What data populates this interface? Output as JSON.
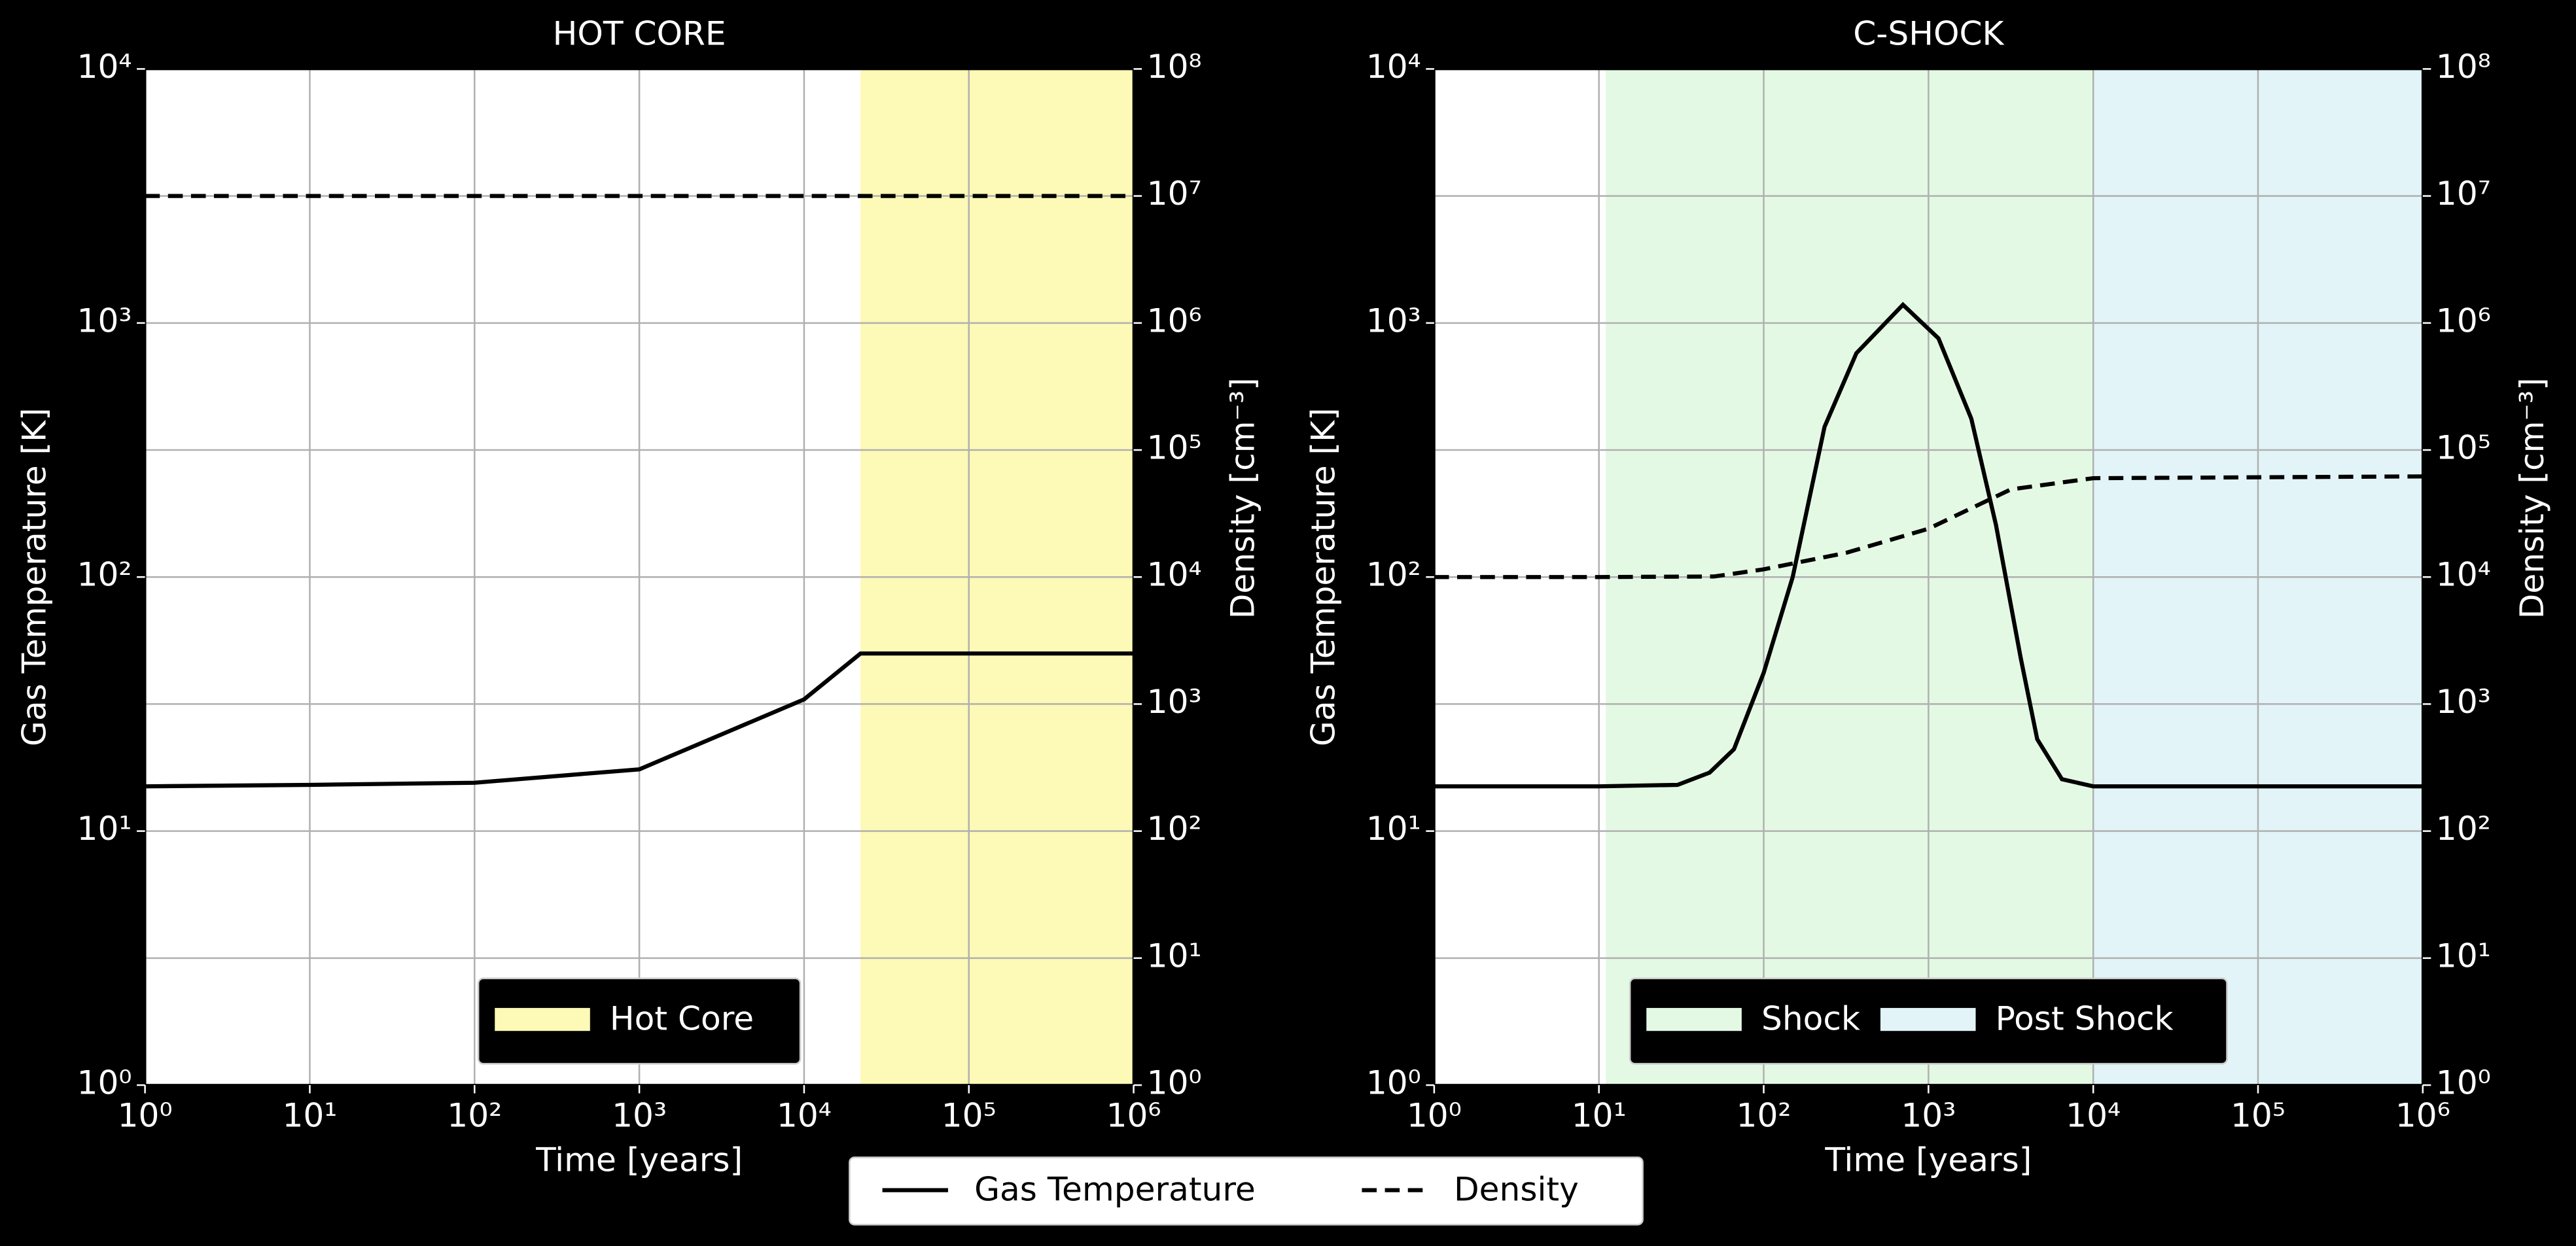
{
  "chart_data": [
    {
      "type": "line",
      "title": "HOT CORE",
      "xlabel": "Time [years]",
      "ylabel": "Gas Temperature [K]",
      "y2label": "Density [cm⁻³]",
      "log_scale": true,
      "grid": true,
      "xlim": [
        1,
        1000000
      ],
      "xticks": [
        {
          "value": 1,
          "label": "10⁰"
        },
        {
          "value": 10,
          "label": "10¹"
        },
        {
          "value": 100,
          "label": "10²"
        },
        {
          "value": 1000,
          "label": "10³"
        },
        {
          "value": 10000,
          "label": "10⁴"
        },
        {
          "value": 100000,
          "label": "10⁵"
        },
        {
          "value": 1000000,
          "label": "10⁶"
        }
      ],
      "ylim": [
        1,
        10000
      ],
      "yticks": [
        {
          "value": 1,
          "label": "10⁰"
        },
        {
          "value": 10,
          "label": "10¹"
        },
        {
          "value": 100,
          "label": "10²"
        },
        {
          "value": 1000,
          "label": "10³"
        },
        {
          "value": 10000,
          "label": "10⁴"
        }
      ],
      "y2lim": [
        1,
        100000000
      ],
      "y2ticks": [
        {
          "value": 1,
          "label": "10⁰"
        },
        {
          "value": 10,
          "label": "10¹"
        },
        {
          "value": 100,
          "label": "10²"
        },
        {
          "value": 1000,
          "label": "10³"
        },
        {
          "value": 10000,
          "label": "10⁴"
        },
        {
          "value": 100000,
          "label": "10⁵"
        },
        {
          "value": 1000000,
          "label": "10⁶"
        },
        {
          "value": 10000000,
          "label": "10⁷"
        },
        {
          "value": 100000000,
          "label": "10⁸"
        }
      ],
      "regions": [
        {
          "name": "Hot Core",
          "color": "#fdf9b6",
          "x": [
            22000,
            1000000
          ]
        }
      ],
      "series": [
        {
          "name": "Gas Temperature",
          "color": "#000000",
          "style": "solid",
          "x": [
            1,
            10,
            100,
            1000,
            10000,
            22000,
            1000000
          ],
          "values": [
            15,
            15.2,
            15.5,
            17.5,
            33,
            50,
            50
          ]
        },
        {
          "name": "Density",
          "color": "#000000",
          "style": "dashed",
          "axis": "y2",
          "x": [
            1,
            1000000
          ],
          "values": [
            10000000,
            10000000
          ]
        }
      ]
    },
    {
      "type": "line",
      "title": "C-SHOCK",
      "xlabel": "Time [years]",
      "ylabel": "Gas Temperature [K]",
      "y2label": "Density [cm⁻³]",
      "log_scale": true,
      "grid": true,
      "xlim": [
        1,
        1000000
      ],
      "xticks": [
        {
          "value": 1,
          "label": "10⁰"
        },
        {
          "value": 10,
          "label": "10¹"
        },
        {
          "value": 100,
          "label": "10²"
        },
        {
          "value": 1000,
          "label": "10³"
        },
        {
          "value": 10000,
          "label": "10⁴"
        },
        {
          "value": 100000,
          "label": "10⁵"
        },
        {
          "value": 1000000,
          "label": "10⁶"
        }
      ],
      "ylim": [
        1,
        10000
      ],
      "yticks": [
        {
          "value": 1,
          "label": "10⁰"
        },
        {
          "value": 10,
          "label": "10¹"
        },
        {
          "value": 100,
          "label": "10²"
        },
        {
          "value": 1000,
          "label": "10³"
        },
        {
          "value": 10000,
          "label": "10⁴"
        }
      ],
      "y2lim": [
        1,
        100000000
      ],
      "y2ticks": [
        {
          "value": 1,
          "label": "10⁰"
        },
        {
          "value": 10,
          "label": "10¹"
        },
        {
          "value": 100,
          "label": "10²"
        },
        {
          "value": 1000,
          "label": "10³"
        },
        {
          "value": 10000,
          "label": "10⁴"
        },
        {
          "value": 100000,
          "label": "10⁵"
        },
        {
          "value": 1000000,
          "label": "10⁶"
        },
        {
          "value": 10000000,
          "label": "10⁷"
        },
        {
          "value": 100000000,
          "label": "10⁸"
        }
      ],
      "regions": [
        {
          "name": "Shock",
          "color": "#e4f9e4",
          "x": [
            11,
            10000
          ]
        },
        {
          "name": "Post Shock",
          "color": "#e2f4f8",
          "x": [
            10000,
            1000000
          ]
        }
      ],
      "series": [
        {
          "name": "Gas Temperature",
          "color": "#000000",
          "style": "solid",
          "x": [
            1,
            10,
            30,
            47,
            66,
            100,
            150,
            234,
            365,
            700,
            1150,
            1820,
            2570,
            3630,
            4570,
            6460,
            10000,
            1000000
          ],
          "values": [
            15,
            15,
            15.2,
            17,
            21,
            42,
            100,
            390,
            760,
            1180,
            870,
            420,
            160,
            48,
            23,
            16,
            15,
            15
          ]
        },
        {
          "name": "Density",
          "color": "#000000",
          "style": "dashed",
          "axis": "y2",
          "x": [
            1,
            10,
            50,
            100,
            316,
            1000,
            3162,
            10000,
            1000000
          ],
          "values": [
            10000,
            10000,
            10100,
            11500,
            15500,
            24000,
            49000,
            60000,
            62000
          ]
        }
      ]
    }
  ]
}
